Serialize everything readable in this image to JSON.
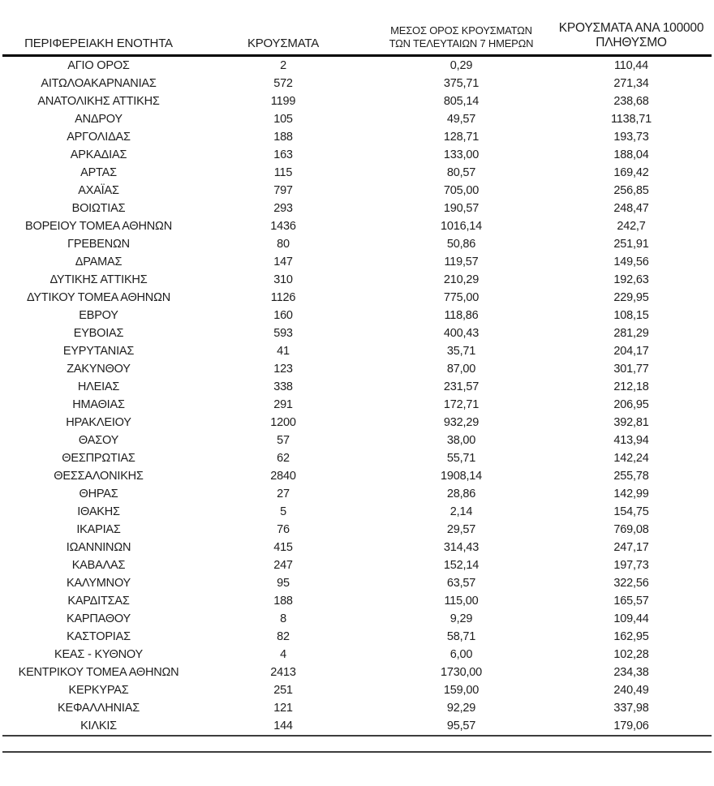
{
  "document": {
    "kind": "regional-covid-cases-table",
    "language": "el"
  },
  "colors": {
    "text": "#1d1d1d",
    "header_rule": "#000000",
    "footer_rule": "#3d3d3d",
    "background": "#ffffff"
  },
  "table": {
    "headers": {
      "region": "ΠΕΡΙΦΕΡΕΙΑΚΗ ΕΝΟΤΗΤΑ",
      "cases": "ΚΡΟΥΣΜΑΤΑ",
      "avg7_line1": "ΜΕΣΟΣ ΟΡΟΣ ΚΡΟΥΣΜΑΤΩΝ",
      "avg7_line2": "ΤΩΝ ΤΕΛΕΥΤΑΙΩΝ 7 ΗΜΕΡΩΝ",
      "per100k_line1": "ΚΡΟΥΣΜΑΤΑ ΑΝΑ 100000",
      "per100k_line2": "ΠΛΗΘΥΣΜΟ"
    },
    "rows": [
      [
        "ΑΓΙΟ ΟΡΟΣ",
        "2",
        "0,29",
        "110,44"
      ],
      [
        "ΑΙΤΩΛΟΑΚΑΡΝΑΝΙΑΣ",
        "572",
        "375,71",
        "271,34"
      ],
      [
        "ΑΝΑΤΟΛΙΚΗΣ ΑΤΤΙΚΗΣ",
        "1199",
        "805,14",
        "238,68"
      ],
      [
        "ΑΝΔΡΟΥ",
        "105",
        "49,57",
        "1138,71"
      ],
      [
        "ΑΡΓΟΛΙΔΑΣ",
        "188",
        "128,71",
        "193,73"
      ],
      [
        "ΑΡΚΑΔΙΑΣ",
        "163",
        "133,00",
        "188,04"
      ],
      [
        "ΑΡΤΑΣ",
        "115",
        "80,57",
        "169,42"
      ],
      [
        "ΑΧΑΪΑΣ",
        "797",
        "705,00",
        "256,85"
      ],
      [
        "ΒΟΙΩΤΙΑΣ",
        "293",
        "190,57",
        "248,47"
      ],
      [
        "ΒΟΡΕΙΟΥ ΤΟΜΕΑ ΑΘΗΝΩΝ",
        "1436",
        "1016,14",
        "242,7"
      ],
      [
        "ΓΡΕΒΕΝΩΝ",
        "80",
        "50,86",
        "251,91"
      ],
      [
        "ΔΡΑΜΑΣ",
        "147",
        "119,57",
        "149,56"
      ],
      [
        "ΔΥΤΙΚΗΣ ΑΤΤΙΚΗΣ",
        "310",
        "210,29",
        "192,63"
      ],
      [
        "ΔΥΤΙΚΟΥ ΤΟΜΕΑ ΑΘΗΝΩΝ",
        "1126",
        "775,00",
        "229,95"
      ],
      [
        "ΕΒΡΟΥ",
        "160",
        "118,86",
        "108,15"
      ],
      [
        "ΕΥΒΟΙΑΣ",
        "593",
        "400,43",
        "281,29"
      ],
      [
        "ΕΥΡΥΤΑΝΙΑΣ",
        "41",
        "35,71",
        "204,17"
      ],
      [
        "ΖΑΚΥΝΘΟΥ",
        "123",
        "87,00",
        "301,77"
      ],
      [
        "ΗΛΕΙΑΣ",
        "338",
        "231,57",
        "212,18"
      ],
      [
        "ΗΜΑΘΙΑΣ",
        "291",
        "172,71",
        "206,95"
      ],
      [
        "ΗΡΑΚΛΕΙΟΥ",
        "1200",
        "932,29",
        "392,81"
      ],
      [
        "ΘΑΣΟΥ",
        "57",
        "38,00",
        "413,94"
      ],
      [
        "ΘΕΣΠΡΩΤΙΑΣ",
        "62",
        "55,71",
        "142,24"
      ],
      [
        "ΘΕΣΣΑΛΟΝΙΚΗΣ",
        "2840",
        "1908,14",
        "255,78"
      ],
      [
        "ΘΗΡΑΣ",
        "27",
        "28,86",
        "142,99"
      ],
      [
        "ΙΘΑΚΗΣ",
        "5",
        "2,14",
        "154,75"
      ],
      [
        "ΙΚΑΡΙΑΣ",
        "76",
        "29,57",
        "769,08"
      ],
      [
        "ΙΩΑΝΝΙΝΩΝ",
        "415",
        "314,43",
        "247,17"
      ],
      [
        "ΚΑΒΑΛΑΣ",
        "247",
        "152,14",
        "197,73"
      ],
      [
        "ΚΑΛΥΜΝΟΥ",
        "95",
        "63,57",
        "322,56"
      ],
      [
        "ΚΑΡΔΙΤΣΑΣ",
        "188",
        "115,00",
        "165,57"
      ],
      [
        "ΚΑΡΠΑΘΟΥ",
        "8",
        "9,29",
        "109,44"
      ],
      [
        "ΚΑΣΤΟΡΙΑΣ",
        "82",
        "58,71",
        "162,95"
      ],
      [
        "ΚΕΑΣ - ΚΥΘΝΟΥ",
        "4",
        "6,00",
        "102,28"
      ],
      [
        "ΚΕΝΤΡΙΚΟΥ ΤΟΜΕΑ ΑΘΗΝΩΝ",
        "2413",
        "1730,00",
        "234,38"
      ],
      [
        "ΚΕΡΚΥΡΑΣ",
        "251",
        "159,00",
        "240,49"
      ],
      [
        "ΚΕΦΑΛΛΗΝΙΑΣ",
        "121",
        "92,29",
        "337,98"
      ],
      [
        "ΚΙΛΚΙΣ",
        "144",
        "95,57",
        "179,06"
      ]
    ]
  }
}
